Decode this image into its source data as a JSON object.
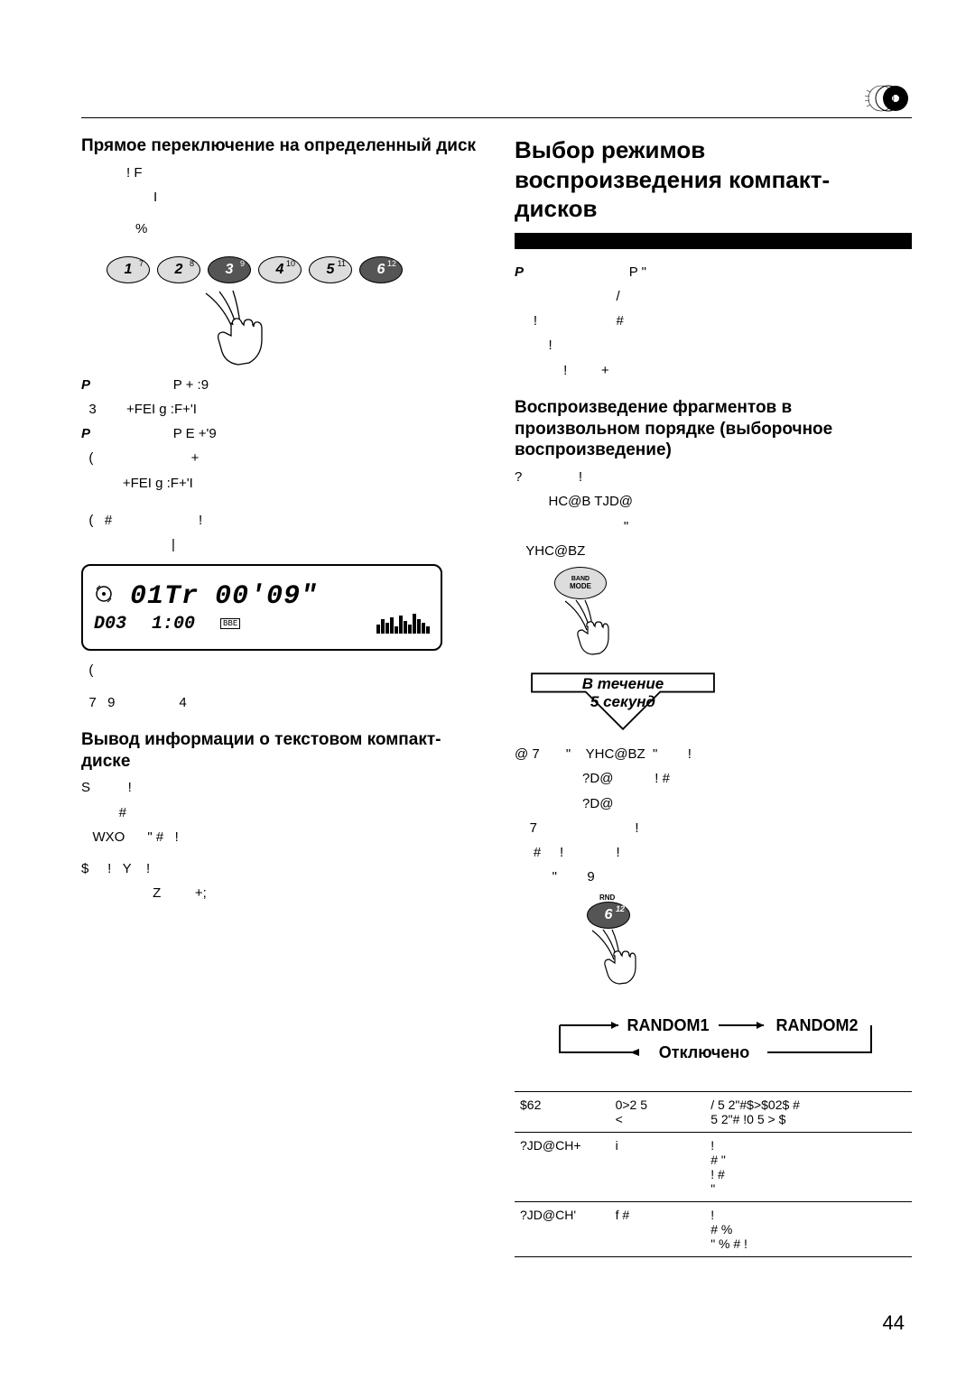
{
  "page_number": "44",
  "icon": {
    "name": "cd-icon"
  },
  "left": {
    "h_direct": "Прямое переключение на определенный диск",
    "p1_line1": "!     F",
    "p1_line2": "I",
    "p1_line3": "%",
    "discs": [
      {
        "big": "1",
        "sm": "7",
        "sel": false
      },
      {
        "big": "2",
        "sm": "8",
        "sel": false
      },
      {
        "big": "3",
        "sm": "9",
        "sel": true
      },
      {
        "big": "4",
        "sm": "10",
        "sel": false
      },
      {
        "big": "5",
        "sm": "11",
        "sel": false
      },
      {
        "big": "6",
        "sm": "12",
        "sel": true
      }
    ],
    "note1_p": "P                      +    :9",
    "note1_l2": "  3        +FEI g :F+'I",
    "note2_p": "P                      E    +'9",
    "note2_l2": "  (                          +",
    "note2_l3": "           +FEI g :F+'I",
    "after_lcd1": "  (   #                       !",
    "after_lcd2": "  (",
    "after_lcd3": "  7   9                 4",
    "lcd": {
      "track": "01Tr",
      "time": "00'09\"",
      "disc": "D03",
      "clock": "1:00",
      "eq_heights": [
        10,
        16,
        12,
        18,
        8,
        20,
        14,
        10,
        22,
        16,
        12,
        8
      ]
    },
    "h_text_info": "Вывод информации о текстовом компакт-диске",
    "ti_l1": "S          !",
    "ti_l2": "          #",
    "ti_l3": "   WXO      \" #   !",
    "ti_l4": "$     !   Y    !",
    "ti_l5": "                   Z         +;"
  },
  "right": {
    "h_main": "Выбор режимов воспроизведения компакт-дисков",
    "intro_p": "P                            \"",
    "intro_l2": "                           /",
    "intro_l3": "     !                     #",
    "intro_l4": "         !",
    "intro_l5": "             !         +",
    "h_random": "Воспроизведение фрагментов в произвольном порядке (выборочное воспроизведение)",
    "r_l1": "?               !",
    "r_l2": "         HC@B TJD@",
    "r_l3": "                             \"",
    "r_l4": "   YHC@BZ",
    "mode_button": {
      "top": "BAND",
      "bottom": "MODE"
    },
    "arrow_label1": "В течение",
    "arrow_label2": "5 секунд",
    "after_arrow_l1": "@ 7       \"    YHC@BZ  \"        !",
    "after_arrow_l2": "                  ?D@           ! #",
    "after_arrow_l3": "                  ?D@",
    "after_arrow_l4": "    7                          !",
    "after_arrow_l5": "     #     !              !",
    "after_arrow_l6": "          \"        9",
    "rnd_button": {
      "label_top": "RND",
      "big": "6",
      "sm": "12"
    },
    "diagram": {
      "r1": "RANDOM1",
      "r2": "RANDOM2",
      "off": "Отключено"
    },
    "table": {
      "headers": [
        "$62",
        "0>2   5\n<",
        "/ 5 2\"#$>$02$ #\n5 2\"#  !0    5 > $"
      ],
      "rows": [
        [
          "?JD@CH+",
          "i",
          "            !\n     #         \"\n          !     #\n              \""
        ],
        [
          "?JD@CH'",
          "f #",
          "            !\n     #      %\n       \"   %   # !"
        ]
      ]
    }
  }
}
